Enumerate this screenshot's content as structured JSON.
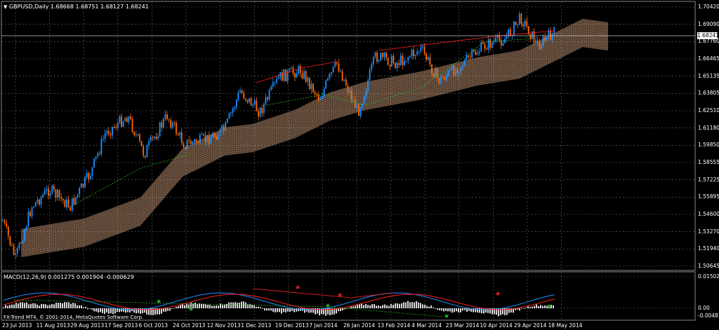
{
  "header": {
    "symbol_line": "GBPUSD,Daily  1.68668 1.68751 1.68127 1.68241",
    "macd_line": "MACD(12,26,9) 0.001275 0.001904 -0.000629",
    "copyright": "FX-Trend MT4, © 2001-2014, MetaQuotes Software Corp."
  },
  "price_axis": {
    "labels": [
      "1.70420",
      "1.69090",
      "1.67760",
      "1.66465",
      "1.65135",
      "1.63805",
      "1.62510",
      "1.61180",
      "1.59850",
      "1.58555",
      "1.57225",
      "1.55895",
      "1.54600",
      "1.53270",
      "1.51940",
      "1.50645"
    ],
    "current_price": "1.68241",
    "min": 1.50645,
    "max": 1.7042
  },
  "macd_axis": {
    "labels": [
      "0.015025",
      "0.00",
      "-0.004878"
    ]
  },
  "time_axis": {
    "labels": [
      "23 Jul 2013",
      "11 Aug 2013",
      "29 Aug 2013",
      "17 Sep 2013",
      "6 Oct 2013",
      "24 Oct 2013",
      "12 Nov 2013",
      "1 Dec 2013",
      "19 Dec 2013",
      "7 Jan 2014",
      "26 Jan 2014",
      "13 Feb 2014",
      "4 Mar 2014",
      "23 Mar 2014",
      "10 Apr 2014",
      "29 Apr 2014",
      "18 May 2014"
    ]
  },
  "colors": {
    "background": "#000000",
    "grid": "#6a6a6a",
    "bull_candle": "#1e90ff",
    "bear_candle": "#ff6a00",
    "cloud": "#f0b890",
    "resistance_line": "#ff2020",
    "support_line": "#20c020",
    "macd_histogram": "#d8d8d8",
    "macd_signal": "#ff2020",
    "macd_main": "#1e90ff",
    "current_price_line": "#c0c0c0"
  },
  "chart_data": {
    "type": "line",
    "title": "GBPUSD,Daily",
    "series": [
      {
        "name": "GBPUSD",
        "x": [
          "23 Jul 2013",
          "11 Aug 2013",
          "29 Aug 2013",
          "17 Sep 2013",
          "6 Oct 2013",
          "24 Oct 2013",
          "12 Nov 2013",
          "1 Dec 2013",
          "19 Dec 2013",
          "7 Jan 2014",
          "26 Jan 2014",
          "13 Feb 2014",
          "4 Mar 2014",
          "23 Mar 2014",
          "10 Apr 2014",
          "29 Apr 2014",
          "18 May 2014"
        ],
        "values": [
          1.535,
          1.548,
          1.557,
          1.605,
          1.596,
          1.617,
          1.603,
          1.638,
          1.642,
          1.645,
          1.649,
          1.667,
          1.668,
          1.66,
          1.676,
          1.697,
          1.682
        ]
      }
    ],
    "ylim": [
      1.50645,
      1.7042
    ],
    "grid": true
  }
}
